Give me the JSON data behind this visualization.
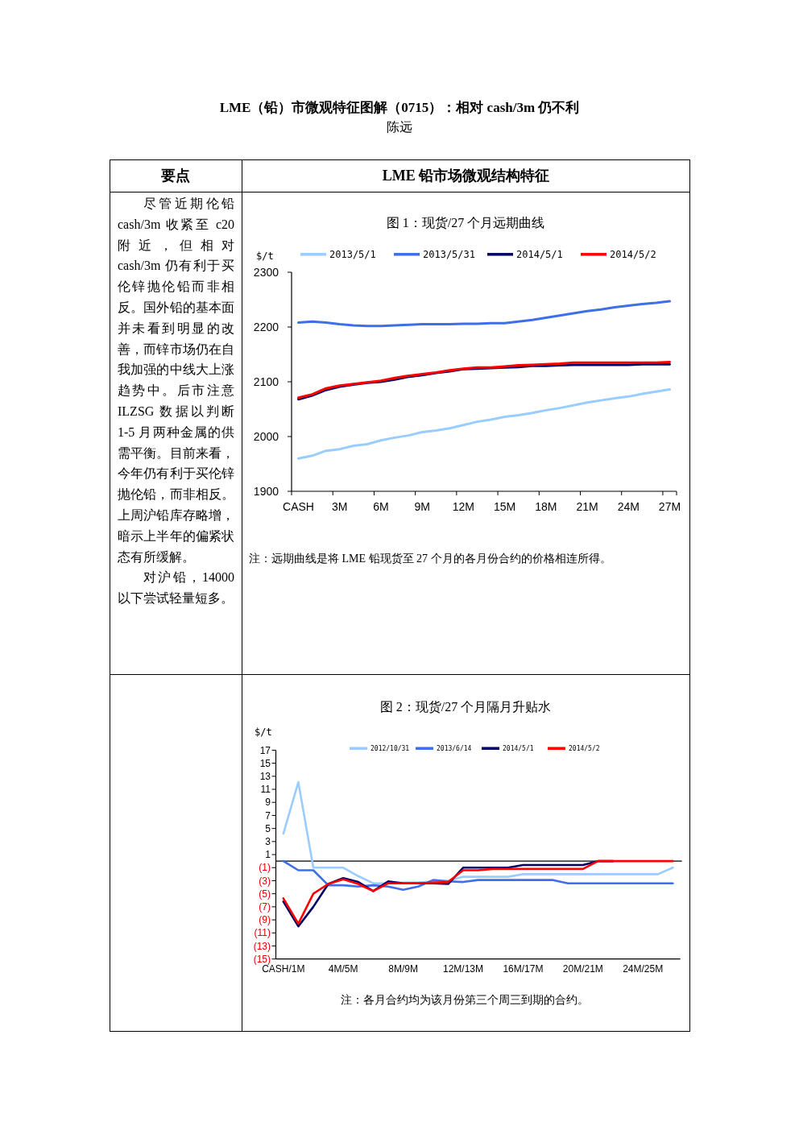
{
  "chart_data": [
    {
      "type": "other",
      "title": "LME（铅）市微观特征图解（0715）：相对 cash/3m 仍不利",
      "subtitle": "陈远",
      "annotations": [
        "要点",
        "LME 铅市场微观结构特征",
        "尽管近期伦铅 cash/3m 收紧至 c20 附近，但相对 cash/3m 仍有利于买伦锌抛伦铅而非相反。国外铅的基本面并未看到明显的改善，而锌市场仍在自我加强的中线大上涨趋势中。后市注意 ILZSG 数据以判断 1-5 月两种金属的供需平衡。目前来看，今年仍有利于买伦锌抛伦铅，而非相反。上周沪铅库存略增，暗示上半年的偏紧状态有所缓解。",
        "对沪铅，14000 以下尝试轻量短多。"
      ]
    },
    {
      "type": "line",
      "title": "图 1：现货/27 个月远期曲线",
      "ylabel": "$/t",
      "legend": "top",
      "categories": [
        "CASH",
        null,
        null,
        "3M",
        null,
        null,
        "6M",
        null,
        null,
        "9M",
        null,
        null,
        "12M",
        null,
        null,
        "15M",
        null,
        null,
        "18M",
        null,
        null,
        "21M",
        null,
        null,
        "24M",
        null,
        null,
        "27M"
      ],
      "ylim": [
        1900,
        2300
      ],
      "yticks": [
        1900,
        2000,
        2100,
        2200,
        2300
      ],
      "series": [
        {
          "name": "2013/5/1",
          "color": "#99ccff",
          "values": [
            1960,
            1965,
            1974,
            1977,
            1983,
            1986,
            1993,
            1998,
            2002,
            2008,
            2011,
            2015,
            2021,
            2027,
            2031,
            2036,
            2039,
            2043,
            2048,
            2052,
            2057,
            2062,
            2066,
            2070,
            2073,
            2078,
            2082,
            2086
          ]
        },
        {
          "name": "2013/5/31",
          "color": "#3d6fe8",
          "values": [
            2208,
            2210,
            2208,
            2205,
            2203,
            2202,
            2202,
            2203,
            2204,
            2205,
            2205,
            2205,
            2206,
            2206,
            2207,
            2207,
            2210,
            2213,
            2217,
            2221,
            2225,
            2229,
            2232,
            2236,
            2239,
            2242,
            2244,
            2247
          ]
        },
        {
          "name": "2014/5/1",
          "color": "#000066",
          "values": [
            2068,
            2075,
            2085,
            2091,
            2095,
            2098,
            2100,
            2104,
            2109,
            2112,
            2116,
            2119,
            2123,
            2124,
            2125,
            2126,
            2127,
            2129,
            2129,
            2130,
            2131,
            2131,
            2131,
            2131,
            2131,
            2132,
            2132,
            2132
          ]
        },
        {
          "name": "2014/5/2",
          "color": "#ff0000",
          "values": [
            2071,
            2077,
            2088,
            2093,
            2096,
            2099,
            2102,
            2107,
            2111,
            2114,
            2117,
            2121,
            2124,
            2126,
            2126,
            2128,
            2130,
            2131,
            2132,
            2133,
            2135,
            2135,
            2135,
            2135,
            2135,
            2135,
            2135,
            2136
          ]
        }
      ],
      "annotations": [
        "注：远期曲线是将 LME 铅现货至 27 个月的各月份合约的价格相连所得。"
      ]
    },
    {
      "type": "line",
      "title": "图 2：现货/27 个月隔月升贴水",
      "ylabel": "$/t",
      "legend": "top",
      "categories": [
        "CASH/1M",
        null,
        null,
        null,
        "4M/5M",
        null,
        null,
        null,
        "8M/9M",
        null,
        null,
        null,
        "12M/13M",
        null,
        null,
        null,
        "16M/17M",
        null,
        null,
        null,
        "20M/21M",
        null,
        null,
        null,
        "24M/25M",
        null,
        null
      ],
      "ylim": [
        -15,
        17
      ],
      "yticks": [
        {
          "value": -15,
          "label": "(15)"
        },
        {
          "value": -13,
          "label": "(13)"
        },
        {
          "value": -11,
          "label": "(11)"
        },
        {
          "value": -9,
          "label": "(9)"
        },
        {
          "value": -7,
          "label": "(7)"
        },
        {
          "value": -5,
          "label": "(5)"
        },
        {
          "value": -3,
          "label": "(3)"
        },
        {
          "value": -1,
          "label": "(1)"
        },
        1,
        3,
        5,
        7,
        9,
        11,
        13,
        15,
        17
      ],
      "ref_lines": [
        {
          "axis": "y",
          "value": 0,
          "color": "#000000"
        }
      ],
      "series": [
        {
          "name": "2012/10/31",
          "color": "#99ccff",
          "values": [
            4.2,
            12.1,
            -1,
            -1,
            -1,
            -2.3,
            -3.4,
            -3.4,
            -3.3,
            -3.3,
            -3.1,
            -3.0,
            -2.4,
            -2.4,
            -2.4,
            -2.4,
            -2,
            -2,
            -2,
            -2,
            -2,
            -2,
            -2,
            -2,
            -2,
            -2,
            -1
          ]
        },
        {
          "name": "2013/6/14",
          "color": "#3d6fe8",
          "values": [
            0,
            -1.4,
            -1.4,
            -3.7,
            -3.7,
            -3.9,
            -3.7,
            -3.9,
            -4.4,
            -3.9,
            -2.9,
            -3.1,
            -3.2,
            -2.9,
            -2.9,
            -2.9,
            -2.9,
            -2.9,
            -2.9,
            -3.4,
            -3.4,
            -3.4,
            -3.4,
            -3.4,
            -3.4,
            -3.4,
            -3.4
          ]
        },
        {
          "name": "2014/5/1",
          "color": "#000066",
          "values": [
            -6.2,
            -10,
            -7,
            -3.5,
            -2.6,
            -3.2,
            -4.6,
            -3.1,
            -3.4,
            -3.4,
            -3.4,
            -3.5,
            -1,
            -1,
            -1,
            -1,
            -0.6,
            -0.6,
            -0.6,
            -0.6,
            -0.6,
            0,
            0,
            null,
            null,
            null,
            null
          ]
        },
        {
          "name": "2014/5/2",
          "color": "#ff0000",
          "values": [
            -5.7,
            -9.6,
            -5,
            -3.5,
            -2.8,
            -3.5,
            -4.6,
            -3.4,
            -3.4,
            -3.4,
            -3.3,
            -3.2,
            -1.4,
            -1.4,
            -1.2,
            -1.2,
            -1.2,
            -1.2,
            -1.2,
            -1.2,
            -1.2,
            0,
            0,
            0,
            0,
            0,
            0
          ]
        }
      ],
      "annotations": [
        "注：各月合约均为该月份第三个周三到期的合约。"
      ]
    }
  ]
}
